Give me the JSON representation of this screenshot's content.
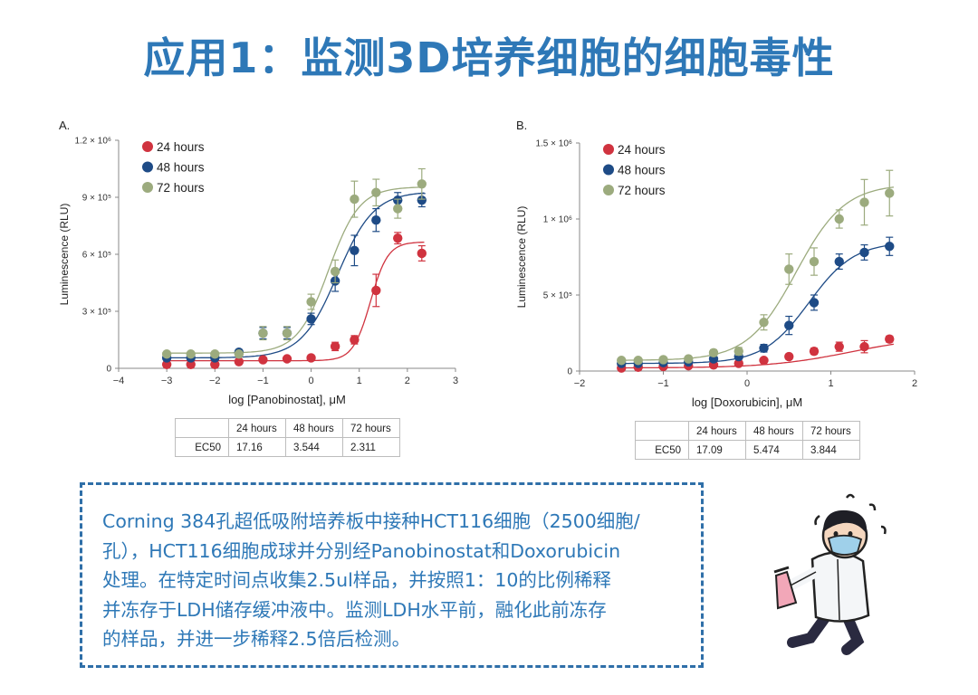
{
  "page_title": "应用1：监测3D培养细胞的细胞毒性",
  "colors": {
    "title": "#2e78b7",
    "h24": "#d0333f",
    "h48": "#1e4b86",
    "h72": "#9cab7e",
    "box_border": "#2f6fa8"
  },
  "chart_data": [
    {
      "type": "scatter",
      "panel_label": "A.",
      "xlabel": "log [Panobinostat], μM",
      "ylabel": "Luminescence (RLU)",
      "xlim": [
        -4,
        3
      ],
      "ylim": [
        0,
        1200000
      ],
      "x_ticks": [
        -4,
        -3,
        -2,
        -1,
        0,
        1,
        2,
        3
      ],
      "x_tick_labels": [
        "−4",
        "−3",
        "−2",
        "−1",
        "0",
        "1",
        "2",
        "3"
      ],
      "y_ticks": [
        0,
        300000,
        600000,
        900000,
        1200000
      ],
      "y_tick_labels": [
        "0",
        "3 × 10⁵",
        "6 × 10⁵",
        "9 × 10⁵",
        "1.2 × 10⁶"
      ],
      "legend_position": "top-left",
      "x": [
        -3,
        -2.5,
        -2,
        -1.5,
        -1,
        -0.5,
        0,
        0.5,
        0.9,
        1.35,
        1.8,
        2.3
      ],
      "series": [
        {
          "name": "24 hours",
          "color": "#d0333f",
          "values": [
            20000,
            20000,
            20000,
            35000,
            45000,
            50000,
            55000,
            115000,
            150000,
            410000,
            685000,
            605000
          ],
          "errors": [
            6000,
            6000,
            6000,
            6000,
            8000,
            8000,
            10000,
            22000,
            22000,
            85000,
            30000,
            40000
          ],
          "curve": {
            "bottom": 40000,
            "top": 665000,
            "log_ec50": 1.234,
            "hill": 2.4
          }
        },
        {
          "name": "48 hours",
          "color": "#1e4b86",
          "values": [
            55000,
            55000,
            55000,
            85000,
            185000,
            185000,
            260000,
            460000,
            620000,
            780000,
            885000,
            885000
          ],
          "errors": [
            8000,
            8000,
            8000,
            12000,
            30000,
            30000,
            30000,
            55000,
            80000,
            60000,
            40000,
            35000
          ],
          "curve": {
            "bottom": 55000,
            "top": 930000,
            "log_ec50": 0.549,
            "hill": 1.15
          }
        },
        {
          "name": "72 hours",
          "color": "#9cab7e",
          "values": [
            75000,
            75000,
            75000,
            75000,
            185000,
            185000,
            350000,
            510000,
            890000,
            925000,
            840000,
            970000
          ],
          "errors": [
            10000,
            10000,
            10000,
            12000,
            35000,
            35000,
            40000,
            60000,
            95000,
            70000,
            50000,
            80000
          ],
          "curve": {
            "bottom": 80000,
            "top": 955000,
            "log_ec50": 0.364,
            "hill": 1.35
          }
        }
      ],
      "ec50_table": {
        "headers": [
          "",
          "24 hours",
          "48 hours",
          "72 hours"
        ],
        "rows": [
          [
            "EC50",
            "17.16",
            "3.544",
            "2.311"
          ]
        ]
      }
    },
    {
      "type": "scatter",
      "panel_label": "B.",
      "xlabel": "log [Doxorubicin], μM",
      "ylabel": "Luminescence (RLU)",
      "xlim": [
        -2,
        2
      ],
      "ylim": [
        0,
        1500000
      ],
      "x_ticks": [
        -2,
        -1,
        0,
        1,
        2
      ],
      "x_tick_labels": [
        "−2",
        "−1",
        "0",
        "1",
        "2"
      ],
      "y_ticks": [
        0,
        500000,
        1000000,
        1500000
      ],
      "y_tick_labels": [
        "0",
        "5 × 10⁵",
        "1 × 10⁶",
        "1.5 × 10⁶"
      ],
      "legend_position": "top-left",
      "x": [
        -1.5,
        -1.3,
        -1.0,
        -0.7,
        -0.4,
        -0.1,
        0.2,
        0.5,
        0.8,
        1.1,
        1.4,
        1.7
      ],
      "series": [
        {
          "name": "24 hours",
          "color": "#d0333f",
          "values": [
            20000,
            25000,
            30000,
            35000,
            40000,
            50000,
            70000,
            95000,
            130000,
            160000,
            160000,
            210000
          ],
          "errors": [
            5000,
            5000,
            5000,
            5000,
            6000,
            8000,
            10000,
            15000,
            20000,
            30000,
            40000,
            20000
          ],
          "curve": {
            "bottom": 20000,
            "top": 230000,
            "log_ec50": 1.233,
            "hill": 0.9
          }
        },
        {
          "name": "48 hours",
          "color": "#1e4b86",
          "values": [
            50000,
            50000,
            55000,
            60000,
            80000,
            95000,
            150000,
            300000,
            450000,
            720000,
            780000,
            820000
          ],
          "errors": [
            8000,
            8000,
            8000,
            10000,
            12000,
            15000,
            25000,
            60000,
            50000,
            50000,
            50000,
            60000
          ],
          "curve": {
            "bottom": 50000,
            "top": 850000,
            "log_ec50": 0.738,
            "hill": 1.6
          }
        },
        {
          "name": "72 hours",
          "color": "#9cab7e",
          "values": [
            70000,
            70000,
            75000,
            80000,
            120000,
            130000,
            320000,
            670000,
            720000,
            1000000,
            1110000,
            1170000
          ],
          "errors": [
            10000,
            10000,
            10000,
            12000,
            20000,
            25000,
            50000,
            100000,
            90000,
            60000,
            150000,
            150000
          ],
          "curve": {
            "bottom": 70000,
            "top": 1230000,
            "log_ec50": 0.585,
            "hill": 1.5
          }
        }
      ],
      "ec50_table": {
        "headers": [
          "",
          "24 hours",
          "48 hours",
          "72 hours"
        ],
        "rows": [
          [
            "EC50",
            "17.09",
            "5.474",
            "3.844"
          ]
        ]
      }
    }
  ],
  "note": {
    "lines": [
      "Corning 384孔超低吸附培养板中接种HCT116细胞（2500细胞/",
      "孔），HCT116细胞成球并分别经Panobinostat和Doxorubicin",
      "处理。在特定时间点收集2.5ul样品，并按照1：10的比例稀释",
      "并冻存于LDH储存缓冲液中。监测LDH水平前，融化此前冻存",
      "的样品，并进一步稀释2.5倍后检测。"
    ]
  },
  "illustration": {
    "description_icon": "scientist-running-with-flask-icon"
  }
}
